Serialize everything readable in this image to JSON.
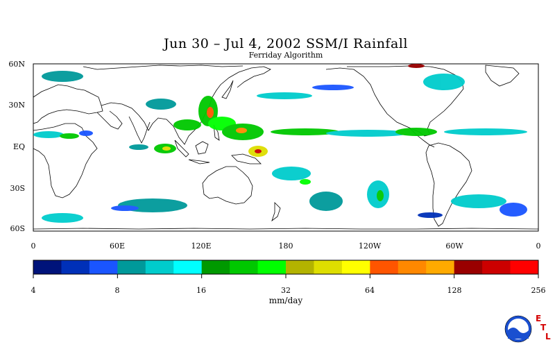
{
  "title": "Jun 30 – Jul 4, 2002 SSM/I Rainfall",
  "subtitle": "Ferriday Algorithm",
  "lat_labels": [
    "60N",
    "30N",
    "EQ",
    "30S",
    "60S"
  ],
  "lon_labels": [
    "0",
    "60E",
    "120E",
    "180",
    "120W",
    "60W",
    "0"
  ],
  "colorbar": {
    "colors": [
      "#00137a",
      "#0030b8",
      "#1a55ff",
      "#00999a",
      "#00cccc",
      "#00ffff",
      "#009900",
      "#00c800",
      "#00ff00",
      "#b3b300",
      "#dede00",
      "#ffff00",
      "#ff5500",
      "#ff8800",
      "#ffaa00",
      "#990000",
      "#cc0000",
      "#ff0000"
    ],
    "tick_labels": [
      "4",
      "8",
      "16",
      "32",
      "64",
      "128",
      "256"
    ],
    "unit": "mm/day"
  },
  "logo": {
    "text": "NOAA",
    "letters": [
      "E",
      "T",
      "L"
    ]
  }
}
